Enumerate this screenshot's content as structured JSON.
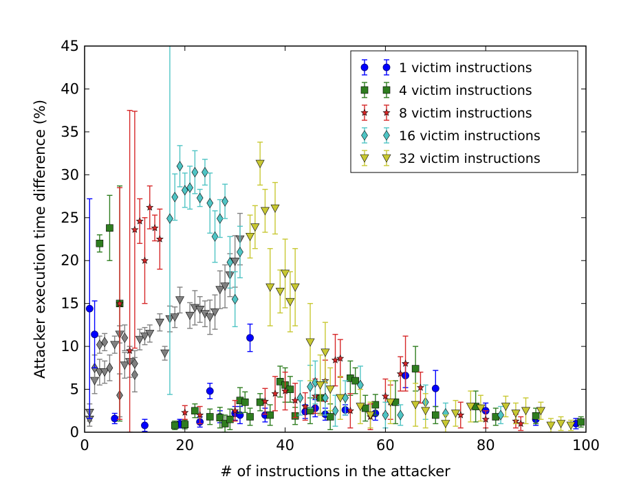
{
  "chart_data": {
    "type": "scatter",
    "title": "",
    "xlabel": "# of instructions in the attacker",
    "ylabel": "Attacker execution time difference (%)",
    "xlim": [
      0,
      100
    ],
    "ylim": [
      0,
      45
    ],
    "x_ticks": [
      0,
      20,
      40,
      60,
      80,
      100
    ],
    "y_ticks": [
      0,
      5,
      10,
      15,
      20,
      25,
      30,
      35,
      40,
      45
    ],
    "grid": false,
    "legend_position": "top-right",
    "error_bars": true,
    "series": [
      {
        "name": "1 victim instructions",
        "marker": "circle",
        "color": "#0000ff",
        "points": [
          {
            "x": 1,
            "y": 14.4,
            "err": 12.8
          },
          {
            "x": 2,
            "y": 11.4,
            "err": 3.9
          },
          {
            "x": 6,
            "y": 1.6,
            "err": 0.6
          },
          {
            "x": 12,
            "y": 0.8,
            "err": 0.7
          },
          {
            "x": 19,
            "y": 1.0,
            "err": 0.5
          },
          {
            "x": 23,
            "y": 1.2,
            "err": 0.6
          },
          {
            "x": 25,
            "y": 4.8,
            "err": 0.9
          },
          {
            "x": 27,
            "y": 1.8,
            "err": 0.7
          },
          {
            "x": 30,
            "y": 2.2,
            "err": 0.8
          },
          {
            "x": 31,
            "y": 2.0,
            "err": 1.0
          },
          {
            "x": 33,
            "y": 11.0,
            "err": 1.6
          },
          {
            "x": 36,
            "y": 2.0,
            "err": 0.8
          },
          {
            "x": 44,
            "y": 2.4,
            "err": 0.8
          },
          {
            "x": 46,
            "y": 2.8,
            "err": 1.0
          },
          {
            "x": 48,
            "y": 2.1,
            "err": 0.7
          },
          {
            "x": 52,
            "y": 2.6,
            "err": 0.6
          },
          {
            "x": 58,
            "y": 2.2,
            "err": 0.8
          },
          {
            "x": 64,
            "y": 6.6,
            "err": 1.4
          },
          {
            "x": 70,
            "y": 5.1,
            "err": 2.1
          },
          {
            "x": 80,
            "y": 2.5,
            "err": 0.9
          },
          {
            "x": 90,
            "y": 1.5,
            "err": 0.7
          },
          {
            "x": 98,
            "y": 1.0,
            "err": 0.6
          }
        ]
      },
      {
        "name": "4 victim instructions",
        "marker": "square",
        "color": "#2e7d1f",
        "points": [
          {
            "x": 3,
            "y": 22.0,
            "err": 1.0
          },
          {
            "x": 5,
            "y": 23.8,
            "err": 3.8
          },
          {
            "x": 7,
            "y": 15.0,
            "err": 13.7
          },
          {
            "x": 18,
            "y": 0.8,
            "err": 0.5
          },
          {
            "x": 20,
            "y": 0.9,
            "err": 0.5
          },
          {
            "x": 22,
            "y": 2.5,
            "err": 0.8
          },
          {
            "x": 25,
            "y": 1.8,
            "err": 0.9
          },
          {
            "x": 27,
            "y": 1.7,
            "err": 1.2
          },
          {
            "x": 28,
            "y": 1.0,
            "err": 1.0
          },
          {
            "x": 29,
            "y": 1.5,
            "err": 1.2
          },
          {
            "x": 31,
            "y": 3.7,
            "err": 1.5
          },
          {
            "x": 32,
            "y": 3.5,
            "err": 1.2
          },
          {
            "x": 33,
            "y": 1.8,
            "err": 1.0
          },
          {
            "x": 35,
            "y": 3.5,
            "err": 1.0
          },
          {
            "x": 37,
            "y": 2.0,
            "err": 1.2
          },
          {
            "x": 39,
            "y": 5.9,
            "err": 1.8
          },
          {
            "x": 40,
            "y": 5.5,
            "err": 2.0
          },
          {
            "x": 41,
            "y": 5.0,
            "err": 1.5
          },
          {
            "x": 42,
            "y": 1.9,
            "err": 1.0
          },
          {
            "x": 45,
            "y": 2.5,
            "err": 1.5
          },
          {
            "x": 47,
            "y": 4.0,
            "err": 1.8
          },
          {
            "x": 49,
            "y": 1.8,
            "err": 1.5
          },
          {
            "x": 53,
            "y": 6.3,
            "err": 2.0
          },
          {
            "x": 54,
            "y": 6.0,
            "err": 1.5
          },
          {
            "x": 56,
            "y": 2.8,
            "err": 1.5
          },
          {
            "x": 58,
            "y": 3.2,
            "err": 1.2
          },
          {
            "x": 62,
            "y": 3.5,
            "err": 2.5
          },
          {
            "x": 66,
            "y": 7.4,
            "err": 2.6
          },
          {
            "x": 70,
            "y": 2.0,
            "err": 1.0
          },
          {
            "x": 78,
            "y": 3.0,
            "err": 1.8
          },
          {
            "x": 82,
            "y": 1.8,
            "err": 1.0
          },
          {
            "x": 90,
            "y": 1.9,
            "err": 0.9
          },
          {
            "x": 99,
            "y": 1.2,
            "err": 0.6
          }
        ]
      },
      {
        "name": "8 victim instructions",
        "marker": "star",
        "color": "#d62728",
        "points": [
          {
            "x": 7,
            "y": 15.0,
            "err": 13.5
          },
          {
            "x": 9,
            "y": 9.5,
            "err": 28.0
          },
          {
            "x": 10,
            "y": 23.6,
            "err": 13.8
          },
          {
            "x": 11,
            "y": 24.6,
            "err": 2.6
          },
          {
            "x": 12,
            "y": 20.0,
            "err": 5.0
          },
          {
            "x": 13,
            "y": 26.2,
            "err": 2.5
          },
          {
            "x": 14,
            "y": 23.8,
            "err": 1.5
          },
          {
            "x": 15,
            "y": 22.5,
            "err": 3.5
          },
          {
            "x": 20,
            "y": 2.3,
            "err": 0.8
          },
          {
            "x": 23,
            "y": 2.0,
            "err": 1.0
          },
          {
            "x": 30,
            "y": 2.5,
            "err": 1.2
          },
          {
            "x": 36,
            "y": 3.6,
            "err": 1.5
          },
          {
            "x": 38,
            "y": 4.5,
            "err": 2.0
          },
          {
            "x": 40,
            "y": 4.8,
            "err": 2.2
          },
          {
            "x": 42,
            "y": 3.7,
            "err": 2.0
          },
          {
            "x": 44,
            "y": 3.0,
            "err": 1.6
          },
          {
            "x": 46,
            "y": 4.2,
            "err": 2.0
          },
          {
            "x": 48,
            "y": 6.0,
            "err": 2.4
          },
          {
            "x": 50,
            "y": 8.4,
            "err": 3.0
          },
          {
            "x": 51,
            "y": 8.6,
            "err": 2.2
          },
          {
            "x": 53,
            "y": 2.5,
            "err": 2.0
          },
          {
            "x": 57,
            "y": 1.8,
            "err": 1.5
          },
          {
            "x": 60,
            "y": 4.2,
            "err": 2.0
          },
          {
            "x": 61,
            "y": 3.5,
            "err": 2.0
          },
          {
            "x": 63,
            "y": 6.8,
            "err": 2.0
          },
          {
            "x": 64,
            "y": 8.0,
            "err": 3.2
          },
          {
            "x": 67,
            "y": 5.2,
            "err": 1.8
          },
          {
            "x": 75,
            "y": 2.0,
            "err": 1.5
          },
          {
            "x": 80,
            "y": 1.5,
            "err": 1.0
          },
          {
            "x": 86,
            "y": 1.3,
            "err": 0.8
          },
          {
            "x": 87,
            "y": 1.0,
            "err": 0.8
          }
        ]
      },
      {
        "name": "16 victim instructions",
        "marker": "diamond",
        "color": "#4fc4c4",
        "points": [
          {
            "x": 17,
            "y": 24.9,
            "err": 20.5
          },
          {
            "x": 18,
            "y": 27.4,
            "err": 2.7
          },
          {
            "x": 19,
            "y": 31.0,
            "err": 2.4
          },
          {
            "x": 20,
            "y": 28.2,
            "err": 2.0
          },
          {
            "x": 21,
            "y": 28.5,
            "err": 2.5
          },
          {
            "x": 22,
            "y": 30.3,
            "err": 2.5
          },
          {
            "x": 23,
            "y": 27.3,
            "err": 1.0
          },
          {
            "x": 24,
            "y": 30.3,
            "err": 1.5
          },
          {
            "x": 25,
            "y": 26.7,
            "err": 3.5
          },
          {
            "x": 26,
            "y": 22.8,
            "err": 3.0
          },
          {
            "x": 27,
            "y": 24.9,
            "err": 2.2
          },
          {
            "x": 28,
            "y": 26.9,
            "err": 2.0
          },
          {
            "x": 29,
            "y": 19.8,
            "err": 3.0
          },
          {
            "x": 30,
            "y": 15.5,
            "err": 3.2
          },
          {
            "x": 31,
            "y": 21.0,
            "err": 3.0
          },
          {
            "x": 43,
            "y": 4.0,
            "err": 2.0
          },
          {
            "x": 45,
            "y": 5.3,
            "err": 2.5
          },
          {
            "x": 46,
            "y": 5.8,
            "err": 2.5
          },
          {
            "x": 48,
            "y": 4.0,
            "err": 2.0
          },
          {
            "x": 50,
            "y": 2.5,
            "err": 1.8
          },
          {
            "x": 52,
            "y": 4.0,
            "err": 2.0
          },
          {
            "x": 55,
            "y": 5.5,
            "err": 2.2
          },
          {
            "x": 60,
            "y": 2.0,
            "err": 1.5
          },
          {
            "x": 63,
            "y": 2.0,
            "err": 1.2
          },
          {
            "x": 68,
            "y": 3.5,
            "err": 2.0
          },
          {
            "x": 72,
            "y": 2.2,
            "err": 1.2
          },
          {
            "x": 83,
            "y": 2.0,
            "err": 1.0
          }
        ]
      },
      {
        "name": "32 victim instructions",
        "marker": "triangle-down",
        "color": "#c8c832",
        "points": [
          {
            "x": 33,
            "y": 22.8,
            "err": 2.5
          },
          {
            "x": 34,
            "y": 23.9,
            "err": 2.5
          },
          {
            "x": 35,
            "y": 31.3,
            "err": 2.5
          },
          {
            "x": 36,
            "y": 25.8,
            "err": 2.5
          },
          {
            "x": 37,
            "y": 16.9,
            "err": 4.5
          },
          {
            "x": 38,
            "y": 26.1,
            "err": 3.0
          },
          {
            "x": 39,
            "y": 16.4,
            "err": 2.5
          },
          {
            "x": 40,
            "y": 18.5,
            "err": 4.0
          },
          {
            "x": 41,
            "y": 15.2,
            "err": 3.5
          },
          {
            "x": 42,
            "y": 16.9,
            "err": 4.5
          },
          {
            "x": 45,
            "y": 10.5,
            "err": 4.5
          },
          {
            "x": 48,
            "y": 9.3,
            "err": 3.5
          },
          {
            "x": 47,
            "y": 5.5,
            "err": 3.5
          },
          {
            "x": 49,
            "y": 5.0,
            "err": 2.5
          },
          {
            "x": 51,
            "y": 4.0,
            "err": 2.5
          },
          {
            "x": 55,
            "y": 3.0,
            "err": 2.0
          },
          {
            "x": 57,
            "y": 2.0,
            "err": 1.5
          },
          {
            "x": 61,
            "y": 3.5,
            "err": 2.5
          },
          {
            "x": 66,
            "y": 3.2,
            "err": 2.5
          },
          {
            "x": 68,
            "y": 2.5,
            "err": 2.0
          },
          {
            "x": 72,
            "y": 1.0,
            "err": 1.0
          },
          {
            "x": 74,
            "y": 2.2,
            "err": 1.5
          },
          {
            "x": 77,
            "y": 3.0,
            "err": 1.8
          },
          {
            "x": 79,
            "y": 2.8,
            "err": 1.5
          },
          {
            "x": 84,
            "y": 3.0,
            "err": 1.2
          },
          {
            "x": 86,
            "y": 2.2,
            "err": 1.2
          },
          {
            "x": 88,
            "y": 2.5,
            "err": 1.5
          },
          {
            "x": 91,
            "y": 2.5,
            "err": 1.0
          },
          {
            "x": 93,
            "y": 0.8,
            "err": 0.8
          },
          {
            "x": 95,
            "y": 1.0,
            "err": 0.8
          },
          {
            "x": 97,
            "y": 0.8,
            "err": 0.6
          }
        ]
      },
      {
        "name": "",
        "marker": "triangle-down",
        "color": "#808080",
        "points": [
          {
            "x": 1,
            "y": 2.3,
            "err": 1.0
          },
          {
            "x": 2,
            "y": 6.0,
            "err": 1.5
          },
          {
            "x": 3,
            "y": 7.0,
            "err": 1.5
          },
          {
            "x": 4,
            "y": 7.0,
            "err": 1.3
          },
          {
            "x": 6,
            "y": 10.2,
            "err": 1.0
          },
          {
            "x": 7,
            "y": 11.4,
            "err": 1.0
          },
          {
            "x": 8,
            "y": 7.8,
            "err": 1.5
          },
          {
            "x": 9,
            "y": 8.2,
            "err": 1.8
          },
          {
            "x": 11,
            "y": 10.8,
            "err": 1.2
          },
          {
            "x": 12,
            "y": 11.2,
            "err": 1.0
          },
          {
            "x": 13,
            "y": 11.5,
            "err": 1.0
          },
          {
            "x": 15,
            "y": 12.8,
            "err": 1.0
          },
          {
            "x": 16,
            "y": 9.2,
            "err": 0.8
          },
          {
            "x": 17,
            "y": 13.2,
            "err": 1.5
          },
          {
            "x": 18,
            "y": 13.4,
            "err": 1.2
          },
          {
            "x": 19,
            "y": 15.4,
            "err": 1.5
          },
          {
            "x": 21,
            "y": 13.6,
            "err": 1.5
          },
          {
            "x": 22,
            "y": 14.5,
            "err": 2.0
          },
          {
            "x": 23,
            "y": 14.3,
            "err": 1.5
          },
          {
            "x": 24,
            "y": 13.8,
            "err": 1.5
          },
          {
            "x": 25,
            "y": 13.4,
            "err": 2.0
          },
          {
            "x": 26,
            "y": 14.0,
            "err": 2.0
          },
          {
            "x": 27,
            "y": 16.6,
            "err": 2.2
          },
          {
            "x": 28,
            "y": 17.0,
            "err": 2.5
          },
          {
            "x": 29,
            "y": 18.3,
            "err": 2.5
          },
          {
            "x": 30,
            "y": 19.9,
            "err": 3.0
          },
          {
            "x": 31,
            "y": 22.5,
            "err": 3.0
          },
          {
            "x": 1,
            "y": 1.5,
            "err": 0.8
          }
        ]
      },
      {
        "name": "",
        "marker": "diamond",
        "color": "#808080",
        "points": [
          {
            "x": 2,
            "y": 7.5,
            "err": 1.5
          },
          {
            "x": 3,
            "y": 10.2,
            "err": 1.0
          },
          {
            "x": 4,
            "y": 10.5,
            "err": 1.0
          },
          {
            "x": 5,
            "y": 7.5,
            "err": 1.5
          },
          {
            "x": 7,
            "y": 4.3,
            "err": 2.5
          },
          {
            "x": 8,
            "y": 11.0,
            "err": 1.5
          },
          {
            "x": 10,
            "y": 6.7,
            "err": 2.0
          },
          {
            "x": 10,
            "y": 8.0,
            "err": 1.5
          }
        ]
      }
    ]
  }
}
